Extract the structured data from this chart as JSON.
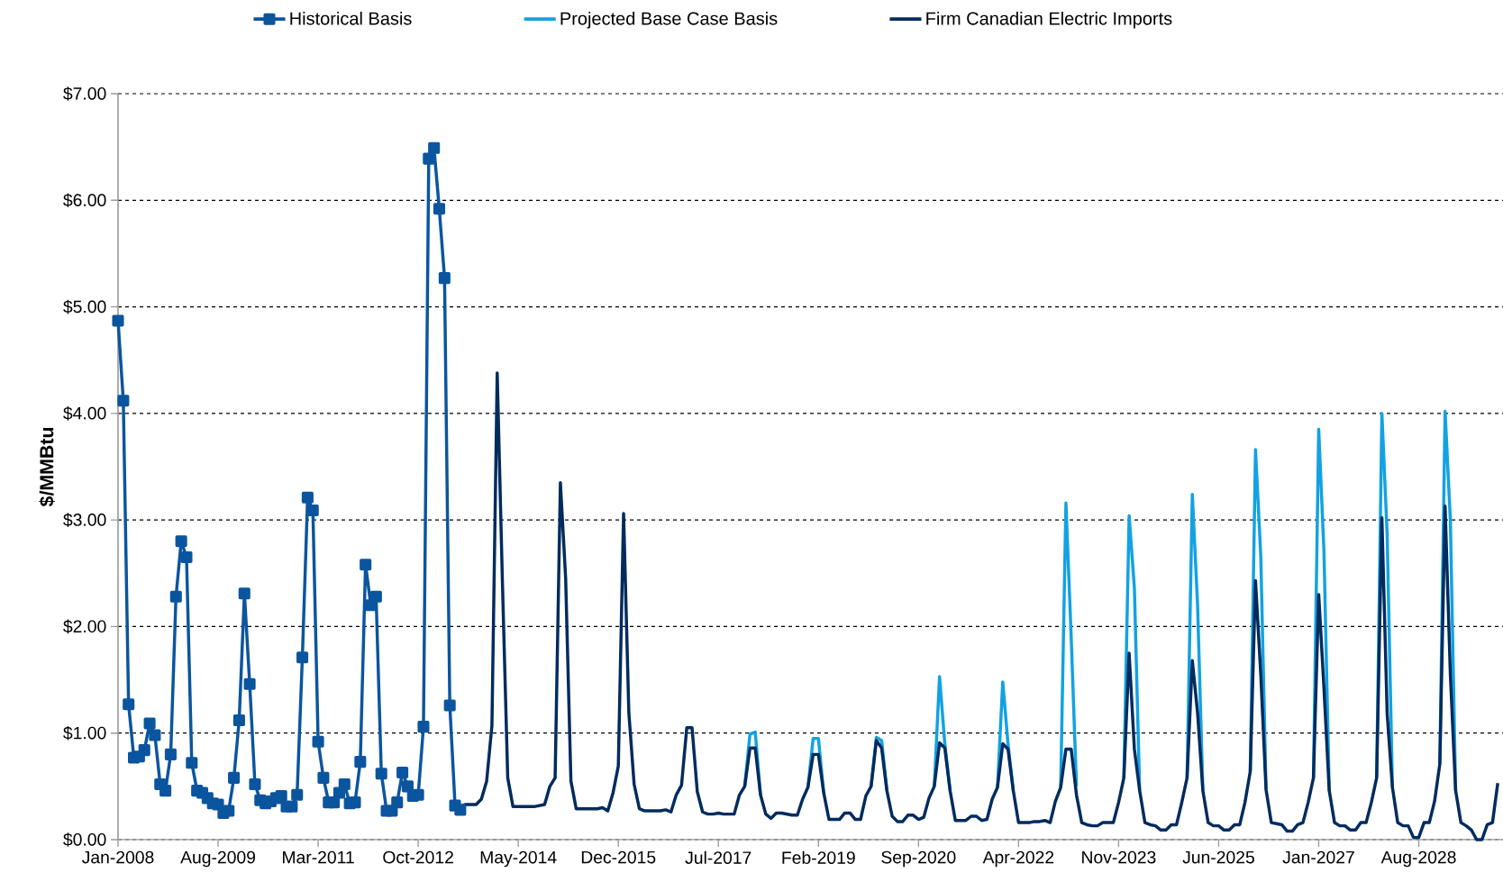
{
  "chart_data": {
    "type": "line",
    "ylabel": "$/MMBtu",
    "xlim": [
      "2008-01",
      "2029-12"
    ],
    "xticks": [
      {
        "value": "2008-01",
        "label": "Jan-2008"
      },
      {
        "value": "2009-08",
        "label": "Aug-2009"
      },
      {
        "value": "2011-03",
        "label": "Mar-2011"
      },
      {
        "value": "2012-10",
        "label": "Oct-2012"
      },
      {
        "value": "2014-05",
        "label": "May-2014"
      },
      {
        "value": "2015-12",
        "label": "Dec-2015"
      },
      {
        "value": "2017-07",
        "label": "Jul-2017"
      },
      {
        "value": "2019-02",
        "label": "Feb-2019"
      },
      {
        "value": "2020-09",
        "label": "Sep-2020"
      },
      {
        "value": "2022-04",
        "label": "Apr-2022"
      },
      {
        "value": "2023-11",
        "label": "Nov-2023"
      },
      {
        "value": "2025-06",
        "label": "Jun-2025"
      },
      {
        "value": "2027-01",
        "label": "Jan-2027"
      },
      {
        "value": "2028-08",
        "label": "Aug-2028"
      }
    ],
    "ylim": [
      0,
      7
    ],
    "yticks": [
      {
        "value": 0,
        "label": "$0.00"
      },
      {
        "value": 1,
        "label": "$1.00"
      },
      {
        "value": 2,
        "label": "$2.00"
      },
      {
        "value": 3,
        "label": "$3.00"
      },
      {
        "value": 4,
        "label": "$4.00"
      },
      {
        "value": 5,
        "label": "$5.00"
      },
      {
        "value": 6,
        "label": "$6.00"
      },
      {
        "value": 7,
        "label": "$7.00"
      }
    ],
    "grid": "y",
    "legend": "top",
    "line_style": "solid",
    "x": [
      "2013-05",
      "2013-06",
      "2013-07",
      "2013-08",
      "2013-09",
      "2013-10",
      "2013-11",
      "2013-12",
      "2014-01",
      "2014-02",
      "2014-03",
      "2014-04",
      "2014-05",
      "2014-06",
      "2014-07",
      "2014-08",
      "2014-09",
      "2014-10",
      "2014-11",
      "2014-12",
      "2015-01",
      "2015-02",
      "2015-03",
      "2015-04",
      "2015-05",
      "2015-06",
      "2015-07",
      "2015-08",
      "2015-09",
      "2015-10",
      "2015-11",
      "2015-12",
      "2016-01",
      "2016-02",
      "2016-03",
      "2016-04",
      "2016-05",
      "2016-06",
      "2016-07",
      "2016-08",
      "2016-09",
      "2016-10",
      "2016-11",
      "2016-12",
      "2017-01",
      "2017-02",
      "2017-03",
      "2017-04",
      "2017-05",
      "2017-06",
      "2017-07",
      "2017-08",
      "2017-09",
      "2017-10",
      "2017-11",
      "2017-12",
      "2018-01",
      "2018-02",
      "2018-03",
      "2018-04",
      "2018-05",
      "2018-06",
      "2018-07",
      "2018-08",
      "2018-09",
      "2018-10",
      "2018-11",
      "2018-12",
      "2019-01",
      "2019-02",
      "2019-03",
      "2019-04",
      "2019-05",
      "2019-06",
      "2019-07",
      "2019-08",
      "2019-09",
      "2019-10",
      "2019-11",
      "2019-12",
      "2020-01",
      "2020-02",
      "2020-03",
      "2020-04",
      "2020-05",
      "2020-06",
      "2020-07",
      "2020-08",
      "2020-09",
      "2020-10",
      "2020-11",
      "2020-12",
      "2021-01",
      "2021-02",
      "2021-03",
      "2021-04",
      "2021-05",
      "2021-06",
      "2021-07",
      "2021-08",
      "2021-09",
      "2021-10",
      "2021-11",
      "2021-12",
      "2022-01",
      "2022-02",
      "2022-03",
      "2022-04",
      "2022-05",
      "2022-06",
      "2022-07",
      "2022-08",
      "2022-09",
      "2022-10",
      "2022-11",
      "2022-12",
      "2023-01",
      "2023-02",
      "2023-03",
      "2023-04",
      "2023-05",
      "2023-06",
      "2023-07",
      "2023-08",
      "2023-09",
      "2023-10",
      "2023-11",
      "2023-12",
      "2024-01",
      "2024-02",
      "2024-03",
      "2024-04",
      "2024-05",
      "2024-06",
      "2024-07",
      "2024-08",
      "2024-09",
      "2024-10",
      "2024-11",
      "2024-12",
      "2025-01",
      "2025-02",
      "2025-03",
      "2025-04",
      "2025-05",
      "2025-06",
      "2025-07",
      "2025-08",
      "2025-09",
      "2025-10",
      "2025-11",
      "2025-12",
      "2026-01",
      "2026-02",
      "2026-03",
      "2026-04",
      "2026-05",
      "2026-06",
      "2026-07",
      "2026-08",
      "2026-09",
      "2026-10",
      "2026-11",
      "2026-12",
      "2027-01",
      "2027-02",
      "2027-03",
      "2027-04",
      "2027-05",
      "2027-06",
      "2027-07",
      "2027-08",
      "2027-09",
      "2027-10",
      "2027-11",
      "2027-12",
      "2028-01",
      "2028-02",
      "2028-03",
      "2028-04",
      "2028-05",
      "2028-06",
      "2028-07",
      "2028-08",
      "2028-09",
      "2028-10",
      "2028-11",
      "2028-12",
      "2029-01",
      "2029-02",
      "2029-03",
      "2029-04",
      "2029-05",
      "2029-06",
      "2029-07",
      "2029-08",
      "2029-09",
      "2029-10",
      "2029-11"
    ],
    "series": [
      {
        "name": "Historical Basis",
        "color": "#0b559f",
        "marker": "square",
        "x": [
          "2008-01",
          "2008-02",
          "2008-03",
          "2008-04",
          "2008-05",
          "2008-06",
          "2008-07",
          "2008-08",
          "2008-09",
          "2008-10",
          "2008-11",
          "2008-12",
          "2009-01",
          "2009-02",
          "2009-03",
          "2009-04",
          "2009-05",
          "2009-06",
          "2009-07",
          "2009-08",
          "2009-09",
          "2009-10",
          "2009-11",
          "2009-12",
          "2010-01",
          "2010-02",
          "2010-03",
          "2010-04",
          "2010-05",
          "2010-06",
          "2010-07",
          "2010-08",
          "2010-09",
          "2010-10",
          "2010-11",
          "2010-12",
          "2011-01",
          "2011-02",
          "2011-03",
          "2011-04",
          "2011-05",
          "2011-06",
          "2011-07",
          "2011-08",
          "2011-09",
          "2011-10",
          "2011-11",
          "2011-12",
          "2012-01",
          "2012-02",
          "2012-03",
          "2012-04",
          "2012-05",
          "2012-06",
          "2012-07",
          "2012-08",
          "2012-09",
          "2012-10",
          "2012-11",
          "2012-12",
          "2013-01",
          "2013-02",
          "2013-03",
          "2013-04",
          "2013-05",
          "2013-06"
        ],
        "values": [
          4.87,
          4.12,
          1.27,
          0.77,
          0.78,
          0.84,
          1.09,
          0.98,
          0.52,
          0.46,
          0.8,
          2.28,
          2.8,
          2.65,
          0.72,
          0.46,
          0.44,
          0.39,
          0.34,
          0.33,
          0.25,
          0.27,
          0.58,
          1.12,
          2.31,
          1.46,
          0.52,
          0.37,
          0.34,
          0.36,
          0.39,
          0.41,
          0.31,
          0.31,
          0.42,
          1.71,
          3.21,
          3.09,
          0.92,
          0.58,
          0.35,
          0.35,
          0.44,
          0.52,
          0.34,
          0.35,
          0.73,
          2.58,
          2.2,
          2.28,
          0.62,
          0.27,
          0.27,
          0.35,
          0.63,
          0.5,
          0.41,
          0.42,
          1.06,
          6.39,
          6.49,
          5.92,
          5.27,
          1.26,
          0.32,
          0.28
        ]
      },
      {
        "name": "Projected Base Case Basis",
        "color": "#12a2e3",
        "marker": "none",
        "values": [
          null,
          null,
          null,
          null,
          null,
          null,
          null,
          null,
          null,
          null,
          null,
          null,
          null,
          null,
          null,
          null,
          null,
          null,
          null,
          null,
          null,
          null,
          null,
          null,
          null,
          null,
          null,
          null,
          null,
          null,
          null,
          null,
          null,
          null,
          null,
          null,
          null,
          null,
          null,
          null,
          null,
          null,
          null,
          null,
          null,
          null,
          null,
          null,
          null,
          null,
          null,
          null,
          null,
          null,
          null,
          0.5,
          0.99,
          1.01,
          0.42,
          null,
          null,
          null,
          null,
          null,
          null,
          null,
          null,
          0.49,
          0.95,
          0.95,
          0.44,
          null,
          null,
          null,
          null,
          null,
          null,
          null,
          null,
          0.5,
          0.96,
          0.93,
          0.46,
          null,
          null,
          null,
          null,
          null,
          null,
          null,
          null,
          0.5,
          1.53,
          0.9,
          0.46,
          null,
          null,
          null,
          null,
          null,
          null,
          null,
          null,
          0.49,
          1.48,
          0.9,
          0.46,
          null,
          null,
          null,
          null,
          null,
          null,
          null,
          null,
          0.49,
          3.16,
          1.9,
          0.5,
          null,
          null,
          null,
          null,
          null,
          null,
          null,
          null,
          0.58,
          3.04,
          2.36,
          0.46,
          null,
          null,
          null,
          null,
          null,
          null,
          null,
          null,
          0.58,
          3.24,
          2.2,
          0.46,
          null,
          null,
          null,
          null,
          null,
          null,
          null,
          null,
          0.64,
          3.66,
          2.66,
          0.47,
          null,
          null,
          null,
          null,
          null,
          null,
          null,
          null,
          0.58,
          3.85,
          2.7,
          0.46,
          null,
          null,
          null,
          null,
          null,
          null,
          null,
          null,
          0.58,
          4.0,
          2.86,
          0.49,
          null,
          null,
          null,
          null,
          null,
          null,
          null,
          null,
          0.71,
          4.02,
          3.0,
          0.46,
          null,
          null,
          null,
          null,
          null,
          null,
          null,
          null
        ]
      },
      {
        "name": "Firm Canadian Electric Imports",
        "color": "#002b5e",
        "marker": "none",
        "values": [
          0.31,
          0.31,
          0.33,
          0.33,
          0.33,
          0.38,
          0.55,
          1.07,
          4.38,
          2.4,
          0.58,
          0.31,
          0.31,
          0.31,
          0.31,
          0.31,
          0.32,
          0.33,
          0.5,
          0.58,
          3.35,
          2.45,
          0.55,
          0.29,
          0.29,
          0.29,
          0.29,
          0.29,
          0.3,
          0.27,
          0.44,
          0.69,
          3.06,
          1.19,
          0.52,
          0.29,
          0.27,
          0.27,
          0.27,
          0.27,
          0.28,
          0.26,
          0.42,
          0.51,
          1.05,
          1.05,
          0.45,
          0.26,
          0.24,
          0.24,
          0.25,
          0.24,
          0.24,
          0.24,
          0.42,
          0.5,
          0.86,
          0.86,
          0.42,
          0.24,
          0.2,
          0.25,
          0.25,
          0.24,
          0.23,
          0.23,
          0.38,
          0.49,
          0.8,
          0.8,
          0.44,
          0.19,
          0.19,
          0.19,
          0.25,
          0.25,
          0.19,
          0.19,
          0.41,
          0.5,
          0.93,
          0.86,
          0.46,
          0.22,
          0.17,
          0.17,
          0.23,
          0.23,
          0.19,
          0.21,
          0.39,
          0.5,
          0.91,
          0.86,
          0.46,
          0.18,
          0.18,
          0.18,
          0.22,
          0.22,
          0.18,
          0.19,
          0.38,
          0.49,
          0.9,
          0.85,
          0.46,
          0.16,
          0.16,
          0.16,
          0.17,
          0.17,
          0.18,
          0.16,
          0.36,
          0.49,
          0.85,
          0.85,
          0.42,
          0.16,
          0.14,
          0.13,
          0.13,
          0.16,
          0.16,
          0.16,
          0.35,
          0.58,
          1.75,
          0.85,
          0.46,
          0.16,
          0.14,
          0.13,
          0.09,
          0.09,
          0.14,
          0.14,
          0.35,
          0.58,
          1.68,
          1.19,
          0.46,
          0.16,
          0.13,
          0.13,
          0.09,
          0.09,
          0.14,
          0.14,
          0.35,
          0.64,
          2.43,
          1.55,
          0.47,
          0.16,
          0.15,
          0.14,
          0.08,
          0.08,
          0.14,
          0.16,
          0.35,
          0.58,
          2.3,
          1.42,
          0.46,
          0.16,
          0.13,
          0.13,
          0.09,
          0.09,
          0.16,
          0.16,
          0.35,
          0.58,
          3.02,
          1.18,
          0.49,
          0.16,
          0.13,
          0.13,
          0.02,
          0.02,
          0.16,
          0.16,
          0.36,
          0.71,
          3.13,
          1.55,
          0.46,
          0.16,
          0.13,
          0.09,
          0,
          0,
          0.14,
          0.16,
          0.53
        ]
      }
    ]
  }
}
